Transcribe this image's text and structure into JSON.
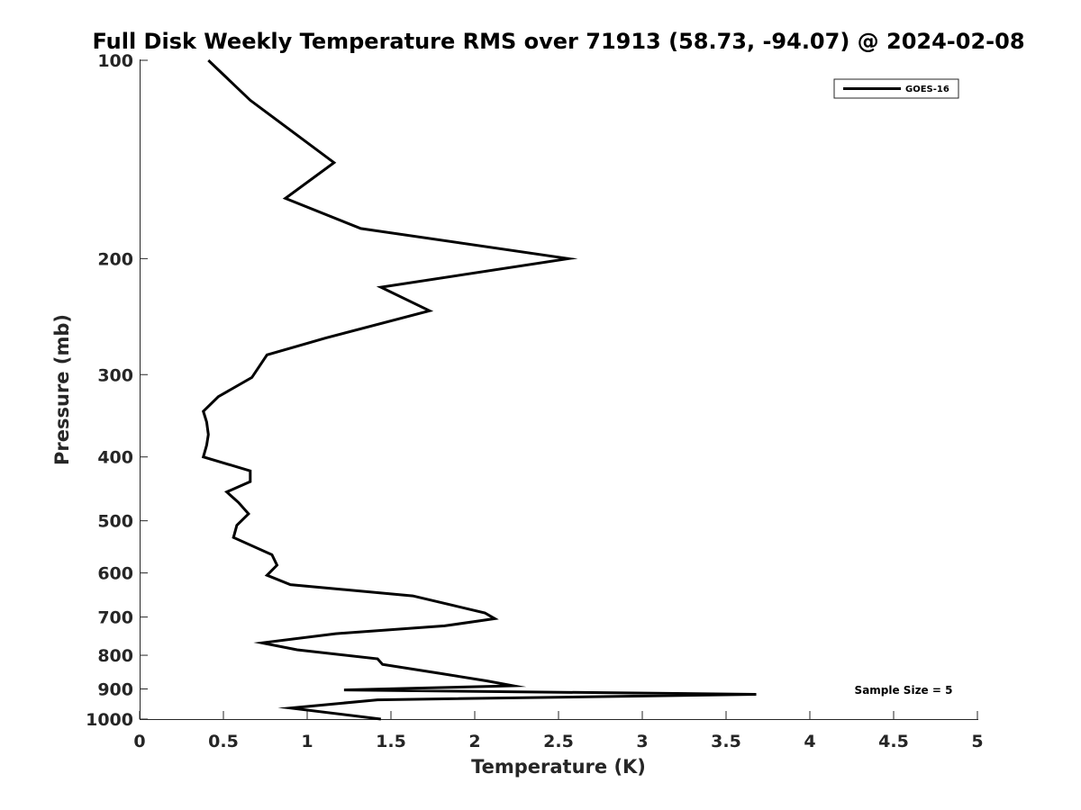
{
  "chart_data": {
    "type": "line",
    "title": "Full Disk Weekly Temperature RMS over 71913 (58.73, -94.07) @ 2024-02-08",
    "xlabel": "Temperature (K)",
    "ylabel": "Pressure (mb)",
    "xlim": [
      0,
      5
    ],
    "ylim": [
      1000,
      100
    ],
    "y_scale": "log",
    "x_ticks": [
      0,
      0.5,
      1,
      1.5,
      2,
      2.5,
      3,
      3.5,
      4,
      4.5,
      5
    ],
    "x_tick_labels": [
      "0",
      "0.5",
      "1",
      "1.5",
      "2",
      "2.5",
      "3",
      "3.5",
      "4",
      "4.5",
      "5"
    ],
    "y_ticks": [
      100,
      200,
      300,
      400,
      500,
      600,
      700,
      800,
      900,
      1000
    ],
    "y_tick_labels": [
      "100",
      "200",
      "300",
      "400",
      "500",
      "600",
      "700",
      "800",
      "900",
      "1000"
    ],
    "grid": false,
    "legend_position": "top-right",
    "series": [
      {
        "name": "GOES-16",
        "color": "#000000",
        "x": [
          0.41,
          0.66,
          1.16,
          0.87,
          1.32,
          2.56,
          1.44,
          1.73,
          1.11,
          0.76,
          0.67,
          0.47,
          0.38,
          0.4,
          0.41,
          0.4,
          0.38,
          0.66,
          0.66,
          0.52,
          0.59,
          0.65,
          0.58,
          0.56,
          0.79,
          0.82,
          0.76,
          0.9,
          1.63,
          1.88,
          2.06,
          2.12,
          1.82,
          1.17,
          0.73,
          0.94,
          1.42,
          1.45,
          1.79,
          2.07,
          2.23,
          1.22,
          3.68,
          1.42,
          0.9,
          1.44
        ],
        "y": [
          100,
          115,
          143,
          162,
          180,
          200,
          221,
          240,
          264,
          280,
          303,
          324,
          341,
          354,
          370,
          384,
          400,
          420,
          436,
          452,
          469,
          488,
          508,
          530,
          563,
          584,
          605,
          625,
          650,
          673,
          690,
          704,
          722,
          742,
          766,
          785,
          810,
          826,
          852,
          875,
          890,
          903,
          917,
          935,
          962,
          1000
        ]
      }
    ],
    "annotations": [
      "Sample Size = 5"
    ]
  }
}
